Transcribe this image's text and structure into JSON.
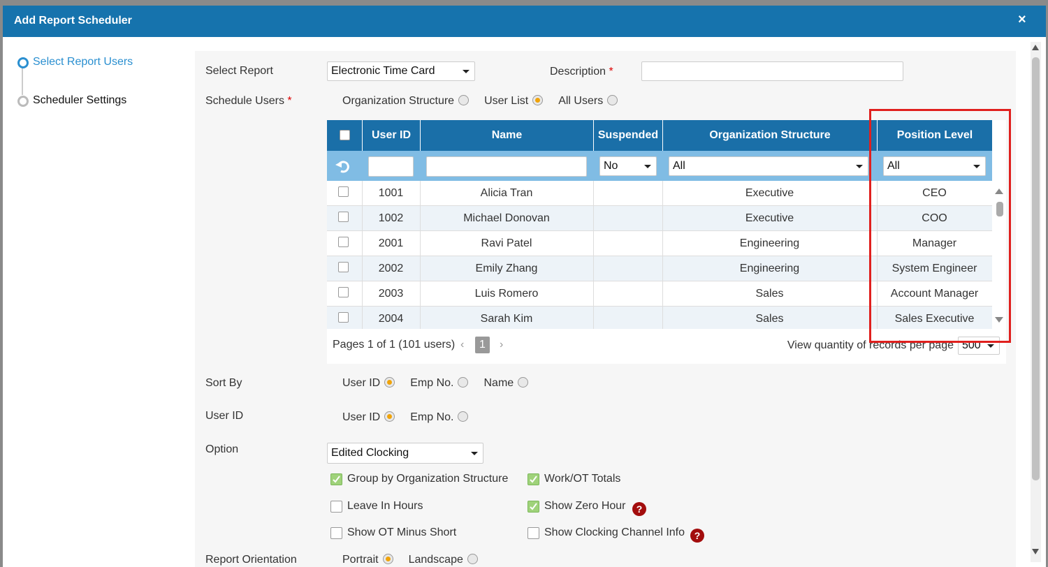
{
  "dialog": {
    "title": "Add Report Scheduler",
    "close": "×"
  },
  "steps": [
    {
      "label": "Select Report Users",
      "active": true
    },
    {
      "label": "Scheduler Settings",
      "active": false
    }
  ],
  "select_report": {
    "label": "Select Report",
    "value": "Electronic Time Card"
  },
  "description": {
    "label": "Description",
    "required": "*"
  },
  "schedule_users": {
    "label": "Schedule Users",
    "required": "*",
    "options": [
      "Organization Structure",
      "User List",
      "All Users"
    ],
    "selected": 1
  },
  "table": {
    "columns": [
      "User ID",
      "Name",
      "Suspended",
      "Organization Structure",
      "Position Level"
    ],
    "filters": {
      "suspended": "No",
      "organization": "All",
      "position": "All"
    },
    "rows": [
      {
        "id": 1001,
        "name": "Alicia Tran",
        "organization": "Executive",
        "position": "CEO"
      },
      {
        "id": 1002,
        "name": "Michael Donovan",
        "organization": "Executive",
        "position": "COO"
      },
      {
        "id": 2001,
        "name": "Ravi Patel",
        "organization": "Engineering",
        "position": "Manager"
      },
      {
        "id": 2002,
        "name": "Emily Zhang",
        "organization": "Engineering",
        "position": "System Engineer"
      },
      {
        "id": 2003,
        "name": "Luis Romero",
        "organization": "Sales",
        "position": "Account Manager"
      },
      {
        "id": 2004,
        "name": "Sarah Kim",
        "organization": "Sales",
        "position": "Sales Executive"
      }
    ],
    "pager": {
      "summary": "Pages 1 of 1 (101 users)",
      "page": 1,
      "per_page_label": "View quantity of records per page",
      "per_page": 500
    }
  },
  "sort_by": {
    "label": "Sort By",
    "options": [
      "User ID",
      "Emp No.",
      "Name"
    ],
    "selected": 0
  },
  "user_id": {
    "label": "User ID",
    "options": [
      "User ID",
      "Emp No."
    ],
    "selected": 0
  },
  "option": {
    "label": "Option",
    "value": "Edited Clocking",
    "checks": [
      {
        "label": "Group by Organization Structure",
        "checked": true
      },
      {
        "label": "Work/OT Totals",
        "checked": true
      },
      {
        "label": "Leave In Hours",
        "checked": false
      },
      {
        "label": "Show Zero Hour",
        "checked": true,
        "help": "?"
      },
      {
        "label": "Show OT Minus Short",
        "checked": false
      },
      {
        "label": "Show Clocking Channel Info",
        "checked": false,
        "help": "?"
      }
    ]
  },
  "orientation": {
    "label": "Report Orientation",
    "options": [
      "Portrait",
      "Landscape"
    ],
    "selected": 0
  }
}
